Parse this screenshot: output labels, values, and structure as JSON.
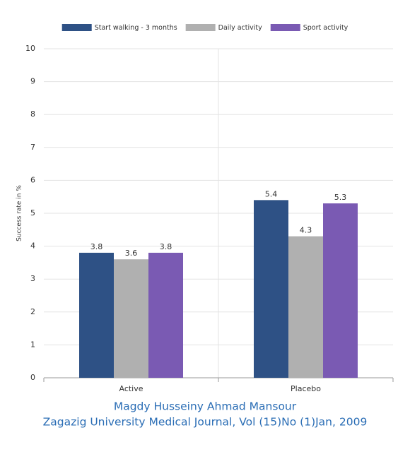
{
  "chart_data": {
    "type": "bar",
    "categories": [
      "Active",
      "Placebo"
    ],
    "series": [
      {
        "name": "Start walking - 3 months",
        "color": "#2e5185",
        "values": [
          3.8,
          5.4
        ]
      },
      {
        "name": "Daily activity",
        "color": "#b0b0b0",
        "values": [
          3.6,
          4.3
        ]
      },
      {
        "name": "Sport activity",
        "color": "#7a5ab3",
        "values": [
          3.8,
          5.3
        ]
      }
    ],
    "y_label": "Success rate in %",
    "ylim": [
      0,
      10
    ],
    "yticks": [
      0,
      1,
      2,
      3,
      4,
      5,
      6,
      7,
      8,
      9,
      10
    ],
    "grid": true,
    "legend": "top",
    "caption": [
      "Magdy Husseiny Ahmad Mansour",
      "Zagazig University Medical Journal, Vol (15)No (1)Jan, 2009"
    ]
  }
}
